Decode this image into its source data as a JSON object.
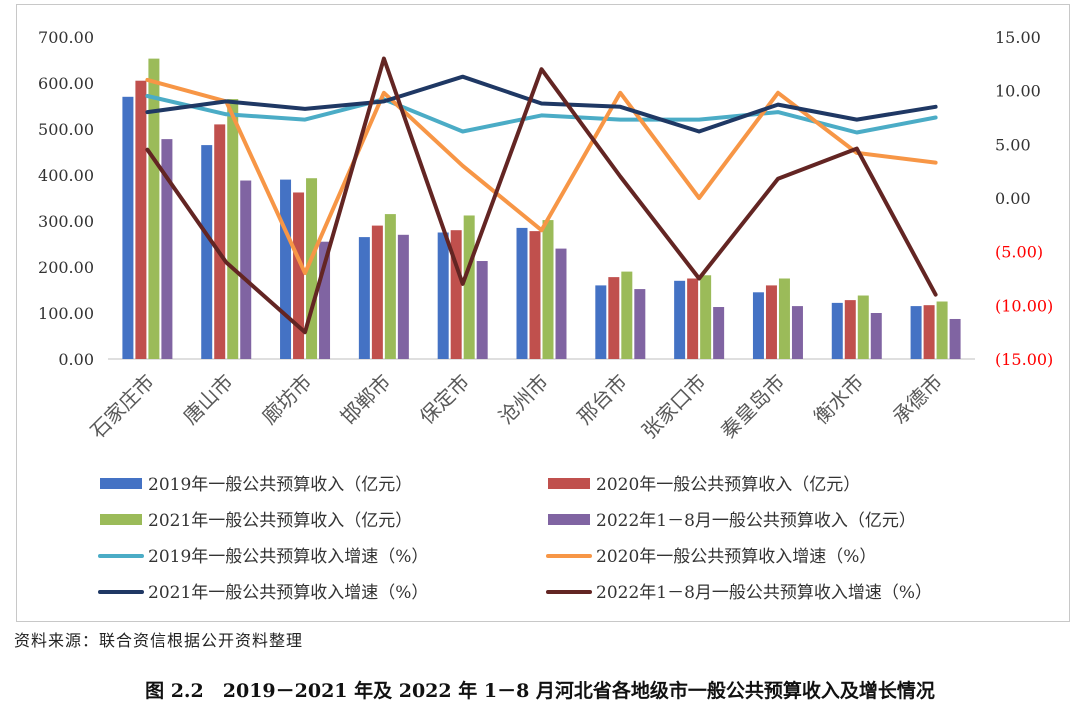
{
  "chart_data": {
    "type": "bar",
    "categories": [
      "石家庄市",
      "唐山市",
      "廊坊市",
      "邯郸市",
      "保定市",
      "沧州市",
      "邢台市",
      "张家口市",
      "秦皇岛市",
      "衡水市",
      "承德市"
    ],
    "y_left_ticks": [
      "700.00",
      "600.00",
      "500.00",
      "400.00",
      "300.00",
      "200.00",
      "100.00",
      "0.00"
    ],
    "y_right_ticks": [
      "15.00",
      "10.00",
      "5.00",
      "0.00",
      "(5.00)",
      "(10.00)",
      "(15.00)"
    ],
    "ylim_left": [
      0,
      700
    ],
    "ylim_right": [
      -15,
      15
    ],
    "series": [
      {
        "name": "2019年一般公共预算收入（亿元）",
        "kind": "bar",
        "axis": "left",
        "color": "#4472c4",
        "values": [
          570,
          465,
          390,
          265,
          275,
          285,
          160,
          170,
          145,
          122,
          115
        ]
      },
      {
        "name": "2020年一般公共预算收入（亿元）",
        "kind": "bar",
        "axis": "left",
        "color": "#c0504d",
        "values": [
          605,
          510,
          362,
          290,
          280,
          278,
          178,
          175,
          160,
          128,
          117
        ]
      },
      {
        "name": "2021年一般公共预算收入（亿元）",
        "kind": "bar",
        "axis": "left",
        "color": "#9bbb59",
        "values": [
          653,
          565,
          393,
          315,
          312,
          302,
          190,
          182,
          175,
          138,
          125
        ]
      },
      {
        "name": "2022年1－8月一般公共预算收入（亿元）",
        "kind": "bar",
        "axis": "left",
        "color": "#8064a2",
        "values": [
          478,
          388,
          255,
          270,
          213,
          240,
          152,
          113,
          115,
          100,
          87
        ]
      },
      {
        "name": "2019年一般公共预算收入增速（%）",
        "kind": "line",
        "axis": "right",
        "color": "#4bacc6",
        "values": [
          9.5,
          7.8,
          7.3,
          9.2,
          6.2,
          7.7,
          7.3,
          7.3,
          8.0,
          6.1,
          7.5
        ]
      },
      {
        "name": "2020年一般公共预算收入增速（%）",
        "kind": "line",
        "axis": "right",
        "color": "#f79646",
        "values": [
          11.0,
          9.0,
          -7.0,
          9.8,
          3.0,
          -3.0,
          9.8,
          0.0,
          9.8,
          4.2,
          3.3
        ]
      },
      {
        "name": "2021年一般公共预算收入增速（%）",
        "kind": "line",
        "axis": "right",
        "color": "#1f3864",
        "values": [
          8.0,
          9.0,
          8.3,
          9.0,
          11.3,
          8.8,
          8.5,
          6.2,
          8.7,
          7.3,
          8.5
        ]
      },
      {
        "name": "2022年1－8月一般公共预算收入增速（%）",
        "kind": "line",
        "axis": "right",
        "color": "#632523",
        "values": [
          4.5,
          -6.0,
          -12.5,
          13.0,
          -8.0,
          12.0,
          2.0,
          -7.5,
          1.8,
          4.6,
          -9.0
        ]
      }
    ],
    "legend_placement": "bottom"
  },
  "source_note": "资料来源：联合资信根据公开资料整理",
  "figure_caption": "图 2.2　2019－2021 年及 2022 年 1－8 月河北省各地级市一般公共预算收入及增长情况",
  "colors": {
    "axis_negative": "#ff0000",
    "axis_text": "#333333",
    "axis_line": "#bfbfbf"
  }
}
